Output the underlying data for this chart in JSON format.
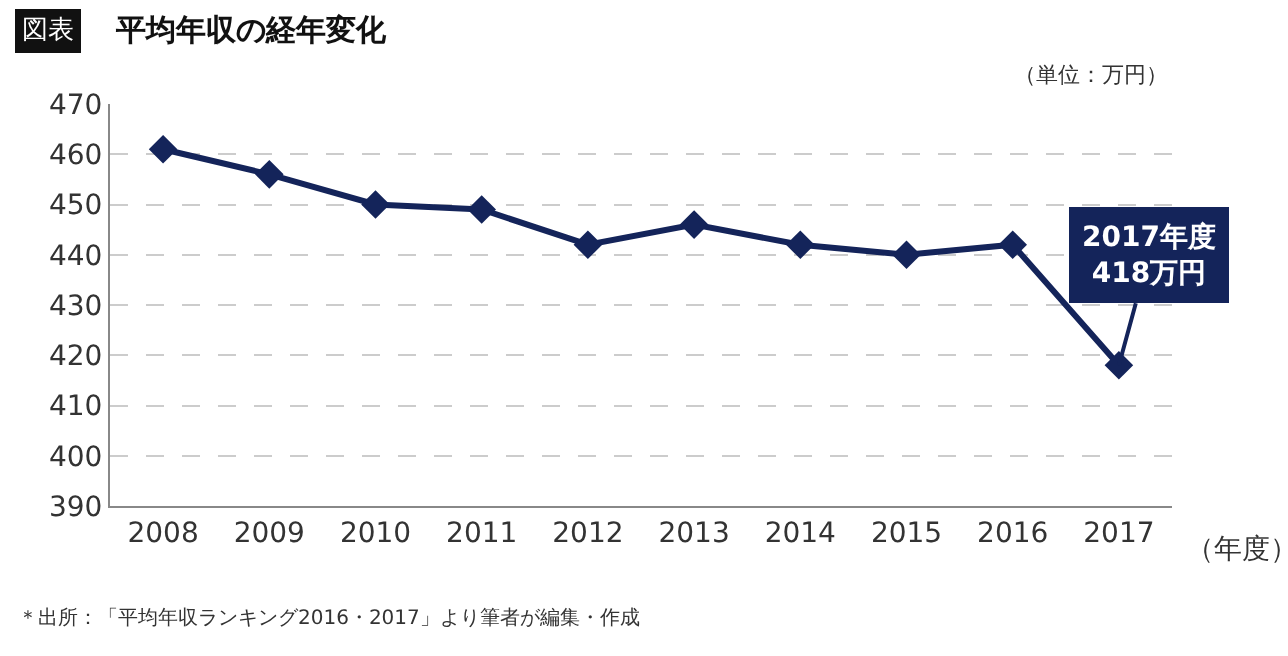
{
  "chart_data": {
    "type": "line",
    "title": "平均年収の経年変化",
    "xlabel": "（年度）",
    "categories": [
      "2008",
      "2009",
      "2010",
      "2011",
      "2012",
      "2013",
      "2014",
      "2015",
      "2016",
      "2017"
    ],
    "series": [
      {
        "color": "#14245a",
        "values": [
          461,
          456,
          450,
          449,
          442,
          446,
          442,
          440,
          442,
          418
        ]
      }
    ],
    "ylim": [
      390,
      470
    ],
    "yticks": [
      390,
      400,
      410,
      420,
      430,
      440,
      450,
      460,
      470
    ],
    "grid": "y",
    "marker": "diamond",
    "line_style": "solid",
    "annotations": [
      "図表",
      "（単位：万円）",
      "＊出所：「平均年収ランキング2016・2017」より筆者が編集・作成",
      {
        "text": "2017年度\n418万円",
        "x": "2017",
        "y": 418
      }
    ]
  }
}
